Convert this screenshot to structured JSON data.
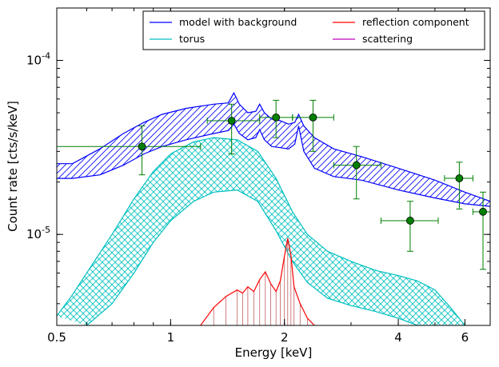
{
  "chart_data": {
    "type": "line",
    "xlabel": "Energy [keV]",
    "ylabel": "Count rate [cts/s/keV]",
    "x_scale": "log",
    "y_scale": "log",
    "xlim": [
      0.5,
      7.0
    ],
    "ylim": [
      3e-06,
      0.0002
    ],
    "x_ticks": [
      {
        "value": 0.5,
        "label": "0.5"
      },
      {
        "value": 1,
        "label": "1"
      },
      {
        "value": 2,
        "label": "2"
      },
      {
        "value": 4,
        "label": "4"
      },
      {
        "value": 6,
        "label": "6"
      }
    ],
    "y_ticks": [
      {
        "value": 1e-05,
        "base": "10",
        "exp": "-5"
      },
      {
        "value": 0.0001,
        "base": "10",
        "exp": "-4"
      }
    ],
    "grid": false,
    "legend_position": "top-right",
    "legend": [
      {
        "label": "model with background",
        "color": "#0000ff"
      },
      {
        "label": "reflection component",
        "color": "#ff0000"
      },
      {
        "label": "torus",
        "color": "#00bfbf"
      },
      {
        "label": "scattering",
        "color": "#bf00bf"
      }
    ],
    "series": [
      {
        "name": "model with background",
        "color": "#0000ff",
        "hatch": "diagonal",
        "upper": [
          [
            0.5,
            2.55e-05
          ],
          [
            0.55,
            2.55e-05
          ],
          [
            0.65,
            3.1e-05
          ],
          [
            0.75,
            3.8e-05
          ],
          [
            0.85,
            4.4e-05
          ],
          [
            0.95,
            4.9e-05
          ],
          [
            1.1,
            5.3e-05
          ],
          [
            1.3,
            5.6e-05
          ],
          [
            1.42,
            5.7e-05
          ],
          [
            1.47,
            6.5e-05
          ],
          [
            1.52,
            5.6e-05
          ],
          [
            1.6,
            5e-05
          ],
          [
            1.68,
            5.1e-05
          ],
          [
            1.72,
            5.6e-05
          ],
          [
            1.77,
            5e-05
          ],
          [
            1.85,
            4.6e-05
          ],
          [
            1.95,
            4.5e-05
          ],
          [
            2.05,
            4.3e-05
          ],
          [
            2.13,
            4.4e-05
          ],
          [
            2.18,
            4.9e-05
          ],
          [
            2.25,
            4.2e-05
          ],
          [
            2.4,
            3.6e-05
          ],
          [
            2.7,
            3.1e-05
          ],
          [
            3.2,
            2.8e-05
          ],
          [
            4.0,
            2.4e-05
          ],
          [
            5.0,
            2.05e-05
          ],
          [
            6.0,
            1.75e-05
          ],
          [
            7.0,
            1.55e-05
          ]
        ],
        "lower": [
          [
            0.5,
            2.1e-05
          ],
          [
            0.55,
            2.1e-05
          ],
          [
            0.65,
            2.2e-05
          ],
          [
            0.75,
            2.5e-05
          ],
          [
            0.85,
            2.9e-05
          ],
          [
            0.95,
            3.2e-05
          ],
          [
            1.1,
            3.5e-05
          ],
          [
            1.3,
            3.8e-05
          ],
          [
            1.42,
            3.95e-05
          ],
          [
            1.47,
            4.3e-05
          ],
          [
            1.52,
            3.8e-05
          ],
          [
            1.6,
            3.5e-05
          ],
          [
            1.68,
            3.6e-05
          ],
          [
            1.72,
            4e-05
          ],
          [
            1.77,
            3.5e-05
          ],
          [
            1.85,
            3.2e-05
          ],
          [
            1.95,
            3.15e-05
          ],
          [
            2.05,
            3.1e-05
          ],
          [
            2.13,
            3.3e-05
          ],
          [
            2.18,
            4.2e-05
          ],
          [
            2.25,
            3e-05
          ],
          [
            2.4,
            2.4e-05
          ],
          [
            2.7,
            2.15e-05
          ],
          [
            3.2,
            2.05e-05
          ],
          [
            4.0,
            1.8e-05
          ],
          [
            5.0,
            1.62e-05
          ],
          [
            6.0,
            1.5e-05
          ],
          [
            7.0,
            1.45e-05
          ]
        ]
      },
      {
        "name": "torus",
        "color": "#00bfbf",
        "hatch": "cross",
        "upper": [
          [
            0.5,
            3.4e-06
          ],
          [
            0.55,
            4.5e-06
          ],
          [
            0.6,
            6e-06
          ],
          [
            0.7,
            1e-05
          ],
          [
            0.8,
            1.6e-05
          ],
          [
            0.9,
            2.3e-05
          ],
          [
            1.0,
            2.9e-05
          ],
          [
            1.15,
            3.4e-05
          ],
          [
            1.3,
            3.6e-05
          ],
          [
            1.5,
            3.5e-05
          ],
          [
            1.7,
            3e-05
          ],
          [
            1.9,
            2.1e-05
          ],
          [
            2.1,
            1.35e-05
          ],
          [
            2.3,
            1e-05
          ],
          [
            2.6,
            8e-06
          ],
          [
            3.0,
            7e-06
          ],
          [
            3.5,
            6.2e-06
          ],
          [
            4.0,
            5.8e-06
          ],
          [
            4.5,
            5.4e-06
          ],
          [
            5.0,
            4.8e-06
          ],
          [
            5.5,
            3.8e-06
          ],
          [
            6.0,
            3e-06
          ]
        ],
        "lower": [
          [
            0.6,
            3e-06
          ],
          [
            0.7,
            4e-06
          ],
          [
            0.8,
            6e-06
          ],
          [
            0.9,
            9e-06
          ],
          [
            1.0,
            1.2e-05
          ],
          [
            1.15,
            1.55e-05
          ],
          [
            1.3,
            1.75e-05
          ],
          [
            1.5,
            1.8e-05
          ],
          [
            1.7,
            1.55e-05
          ],
          [
            1.9,
            1.05e-05
          ],
          [
            2.1,
            7e-06
          ],
          [
            2.3,
            5.3e-06
          ],
          [
            2.6,
            4.3e-06
          ],
          [
            3.0,
            3.9e-06
          ],
          [
            3.5,
            3.6e-06
          ],
          [
            4.0,
            3.3e-06
          ],
          [
            4.5,
            3e-06
          ]
        ]
      },
      {
        "name": "reflection component",
        "color": "#ff0000",
        "points": [
          [
            1.2,
            3e-06
          ],
          [
            1.3,
            3.8e-06
          ],
          [
            1.4,
            4.4e-06
          ],
          [
            1.5,
            4.8e-06
          ],
          [
            1.55,
            4.6e-06
          ],
          [
            1.6,
            5e-06
          ],
          [
            1.66,
            4.7e-06
          ],
          [
            1.72,
            5.5e-06
          ],
          [
            1.78,
            6.1e-06
          ],
          [
            1.84,
            5.2e-06
          ],
          [
            1.9,
            4.7e-06
          ],
          [
            1.95,
            5.4e-06
          ],
          [
            2.0,
            7.5e-06
          ],
          [
            2.04,
            9.5e-06
          ],
          [
            2.08,
            7.6e-06
          ],
          [
            2.12,
            5e-06
          ],
          [
            2.2,
            4e-06
          ],
          [
            2.3,
            3.3e-06
          ],
          [
            2.4,
            3e-06
          ]
        ]
      },
      {
        "name": "scattering",
        "color": "#bf00bf",
        "points": []
      },
      {
        "name": "data",
        "color": "#007f00",
        "type": "scatter",
        "points": [
          {
            "x": 0.84,
            "y": 3.2e-05,
            "xerr": [
              0.5,
              1.2
            ],
            "yerr": [
              2.2e-05,
              4.2e-05
            ]
          },
          {
            "x": 1.45,
            "y": 4.5e-05,
            "xerr": [
              1.25,
              1.72
            ],
            "yerr": [
              2.9e-05,
              5.6e-05
            ]
          },
          {
            "x": 1.9,
            "y": 4.7e-05,
            "xerr": [
              1.72,
              2.1
            ],
            "yerr": [
              3.6e-05,
              5.9e-05
            ]
          },
          {
            "x": 2.38,
            "y": 4.7e-05,
            "xerr": [
              2.1,
              2.7
            ],
            "yerr": [
              3e-05,
              5.9e-05
            ]
          },
          {
            "x": 3.1,
            "y": 2.5e-05,
            "xerr": [
              2.7,
              3.6
            ],
            "yerr": [
              1.6e-05,
              3.2e-05
            ]
          },
          {
            "x": 4.3,
            "y": 1.2e-05,
            "xerr": [
              3.6,
              5.1
            ],
            "yerr": [
              8e-06,
              1.55e-05
            ]
          },
          {
            "x": 5.8,
            "y": 2.1e-05,
            "xerr": [
              5.3,
              6.3
            ],
            "yerr": [
              1.4e-05,
              2.6e-05
            ]
          },
          {
            "x": 6.7,
            "y": 1.35e-05,
            "xerr": [
              6.3,
              7.0
            ],
            "yerr": [
              6.3e-06,
              1.75e-05
            ]
          }
        ]
      }
    ]
  }
}
